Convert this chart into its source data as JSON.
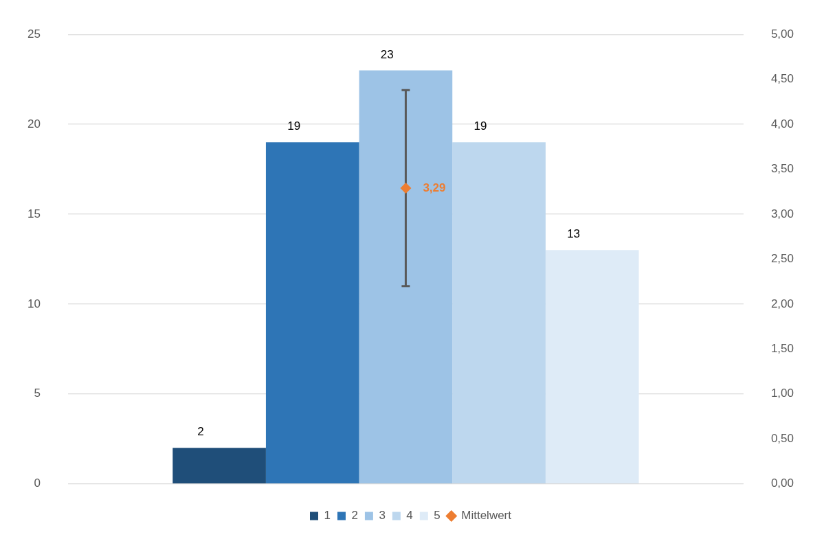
{
  "chart_data": {
    "type": "bar",
    "categories": [
      null
    ],
    "series": [
      {
        "name": "1",
        "color": "#1f4e79",
        "values": [
          2
        ],
        "value_labels": [
          "2"
        ]
      },
      {
        "name": "2",
        "color": "#2e75b6",
        "values": [
          19
        ],
        "value_labels": [
          "19"
        ]
      },
      {
        "name": "3",
        "color": "#9dc3e6",
        "values": [
          23
        ],
        "value_labels": [
          "23"
        ]
      },
      {
        "name": "4",
        "color": "#bdd7ee",
        "values": [
          19
        ],
        "value_labels": [
          "19"
        ]
      },
      {
        "name": "5",
        "color": "#deebf7",
        "values": [
          13
        ],
        "value_labels": [
          "13"
        ]
      },
      {
        "name": "Mittelwert",
        "type": "scatter",
        "axis": "y2",
        "color": "#ed7d31",
        "values": [
          3.29
        ],
        "errors": [
          1.09
        ],
        "value_labels": [
          "3,29"
        ]
      }
    ],
    "ylim": [
      0,
      25
    ],
    "yticks": [
      0,
      5,
      10,
      15,
      20,
      25
    ],
    "y2lim": [
      0,
      5
    ],
    "y2ticks": [
      {
        "value": 0,
        "label": "0,00"
      },
      {
        "value": 0.5,
        "label": "0,50"
      },
      {
        "value": 1,
        "label": "1,00"
      },
      {
        "value": 1.5,
        "label": "1,50"
      },
      {
        "value": 2,
        "label": "2,00"
      },
      {
        "value": 2.5,
        "label": "2,50"
      },
      {
        "value": 3,
        "label": "3,00"
      },
      {
        "value": 3.5,
        "label": "3,50"
      },
      {
        "value": 4,
        "label": "4,00"
      },
      {
        "value": 4.5,
        "label": "4,50"
      },
      {
        "value": 5,
        "label": "5,00"
      }
    ],
    "grid": "y",
    "legend": "bottom",
    "marker": "diamond"
  }
}
